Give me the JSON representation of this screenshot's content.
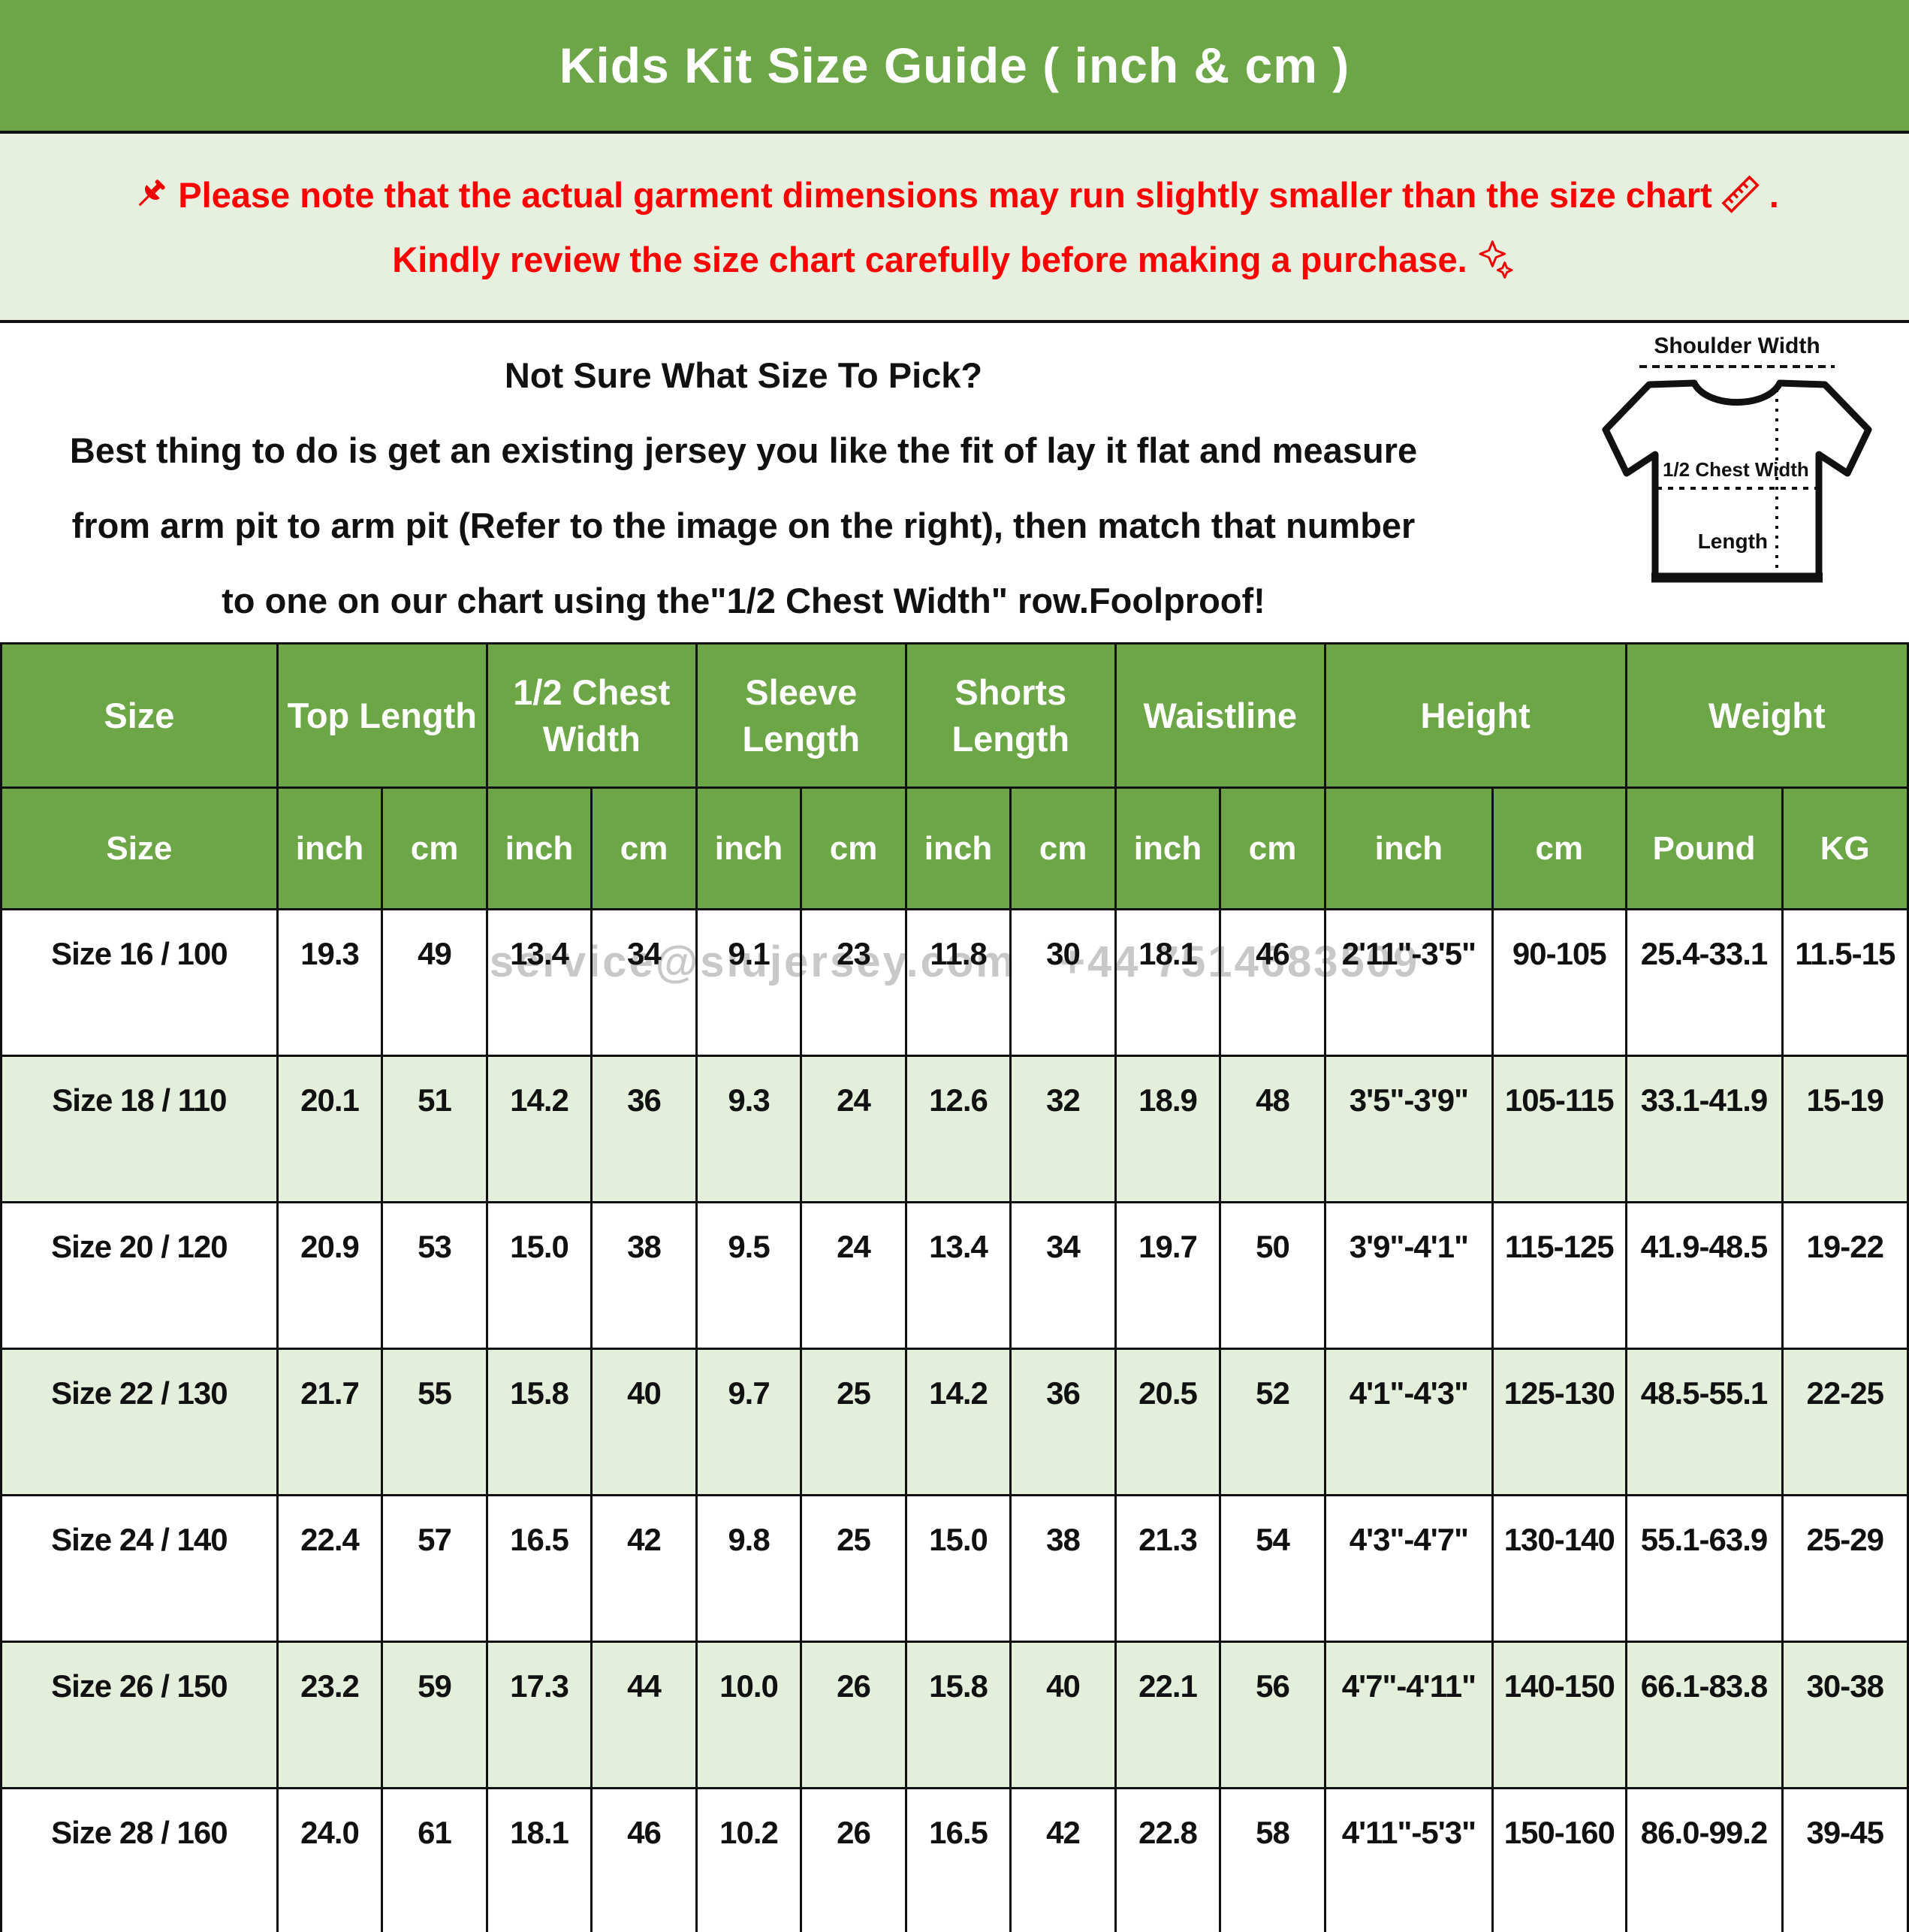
{
  "title": "Kids Kit Size Guide ( inch & cm )",
  "notice": {
    "line1": "Please note that the actual garment dimensions may run slightly smaller than the size chart",
    "line1_period": ".",
    "line2": "Kindly review the size chart carefully before making a purchase."
  },
  "guide": {
    "heading": "Not Sure What Size To Pick?",
    "line1": "Best thing to do is get an existing jersey you like the fit of lay it flat and measure",
    "line2": "from arm pit to arm pit (Refer to the image on the right), then match that number",
    "line3": "to one on our chart using the\"1/2 Chest Width\" row.Foolproof!"
  },
  "diagram": {
    "shoulder_label": "Shoulder Width",
    "chest_label": "1/2 Chest Width",
    "length_label": "Length"
  },
  "watermark": "service@siujersey.com   +44 7514683509",
  "colors": {
    "header_green": "#6CA647",
    "banner_green": "#E7F0DE",
    "row_green": "#E3EFDA",
    "notice_red": "#FE0000"
  },
  "table": {
    "groups": [
      {
        "label": "Size",
        "span": 1
      },
      {
        "label": "Top Length",
        "span": 2
      },
      {
        "label": "1/2 Chest Width",
        "span": 2
      },
      {
        "label": "Sleeve Length",
        "span": 2
      },
      {
        "label": "Shorts Length",
        "span": 2
      },
      {
        "label": "Waistline",
        "span": 2
      },
      {
        "label": "Height",
        "span": 2
      },
      {
        "label": "Weight",
        "span": 2
      }
    ],
    "subheaders": [
      "Size",
      "inch",
      "cm",
      "inch",
      "cm",
      "inch",
      "cm",
      "inch",
      "cm",
      "inch",
      "cm",
      "inch",
      "cm",
      "Pound",
      "KG"
    ],
    "rows": [
      [
        "Size 16 / 100",
        "19.3",
        "49",
        "13.4",
        "34",
        "9.1",
        "23",
        "11.8",
        "30",
        "18.1",
        "46",
        "2'11\"-3'5\"",
        "90-105",
        "25.4-33.1",
        "11.5-15"
      ],
      [
        "Size 18 / 110",
        "20.1",
        "51",
        "14.2",
        "36",
        "9.3",
        "24",
        "12.6",
        "32",
        "18.9",
        "48",
        "3'5\"-3'9\"",
        "105-115",
        "33.1-41.9",
        "15-19"
      ],
      [
        "Size 20 / 120",
        "20.9",
        "53",
        "15.0",
        "38",
        "9.5",
        "24",
        "13.4",
        "34",
        "19.7",
        "50",
        "3'9\"-4'1\"",
        "115-125",
        "41.9-48.5",
        "19-22"
      ],
      [
        "Size 22 / 130",
        "21.7",
        "55",
        "15.8",
        "40",
        "9.7",
        "25",
        "14.2",
        "36",
        "20.5",
        "52",
        "4'1\"-4'3\"",
        "125-130",
        "48.5-55.1",
        "22-25"
      ],
      [
        "Size 24 / 140",
        "22.4",
        "57",
        "16.5",
        "42",
        "9.8",
        "25",
        "15.0",
        "38",
        "21.3",
        "54",
        "4'3\"-4'7\"",
        "130-140",
        "55.1-63.9",
        "25-29"
      ],
      [
        "Size 26 / 150",
        "23.2",
        "59",
        "17.3",
        "44",
        "10.0",
        "26",
        "15.8",
        "40",
        "22.1",
        "56",
        "4'7\"-4'11\"",
        "140-150",
        "66.1-83.8",
        "30-38"
      ],
      [
        "Size 28 / 160",
        "24.0",
        "61",
        "18.1",
        "46",
        "10.2",
        "26",
        "16.5",
        "42",
        "22.8",
        "58",
        "4'11\"-5'3\"",
        "150-160",
        "86.0-99.2",
        "39-45"
      ]
    ]
  }
}
